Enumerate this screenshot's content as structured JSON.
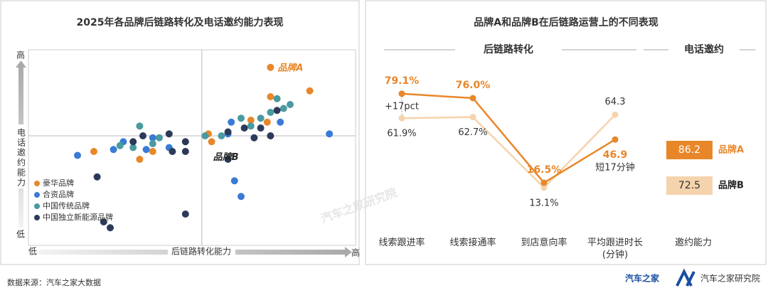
{
  "chart_data": [
    {
      "type": "scatter",
      "title": "2025年各品牌后链路转化及电话邀约能力表现",
      "xlabel": "后链路转化能力",
      "ylabel": "电话邀约能力",
      "xlow": "低",
      "xhigh": "高",
      "ylow": "低",
      "yhigh": "高",
      "xlim": [
        0,
        100
      ],
      "ylim": [
        0,
        100
      ],
      "divider": {
        "x": 53,
        "y": 56
      },
      "annotations": [
        "品牌A",
        "品牌B"
      ],
      "series": [
        {
          "name": "豪华品牌",
          "color": "#e8872a",
          "x": [
            74,
            86,
            74,
            68,
            73,
            56,
            20,
            34,
            38,
            55
          ],
          "values": [
            91,
            79,
            76,
            64,
            63,
            53,
            48,
            44,
            48,
            57
          ]
        },
        {
          "name": "合资品牌",
          "color": "#3a7bd5",
          "x": [
            62,
            77,
            92,
            26,
            15,
            29,
            38,
            43,
            36,
            63,
            65,
            61
          ],
          "values": [
            63,
            63,
            57,
            49,
            46,
            53,
            55,
            50,
            49,
            33,
            25,
            57
          ]
        },
        {
          "name": "中国传统品牌",
          "color": "#4a9aa0",
          "x": [
            76,
            78,
            80,
            74,
            71,
            68,
            59,
            34,
            32,
            28,
            38,
            40,
            54,
            65
          ],
          "values": [
            75,
            70,
            72,
            68,
            65,
            61,
            56,
            61,
            50,
            51,
            52,
            55,
            56,
            65
          ]
        },
        {
          "name": "中国独立新能源品牌",
          "color": "#2c3a5a",
          "x": [
            76,
            71,
            66,
            61,
            74,
            43,
            48,
            44,
            48,
            35,
            32,
            21,
            48,
            23,
            25,
            61,
            69
          ],
          "values": [
            69,
            60,
            60,
            58,
            56,
            57,
            53,
            48,
            48,
            56,
            53,
            35,
            16,
            12,
            9,
            44,
            55
          ]
        }
      ]
    },
    {
      "type": "line",
      "title": "品牌A和品牌B在后链路运营上的不同表现",
      "section": "后链路转化",
      "categories": [
        "线索跟进率",
        "线索接通率",
        "到店意向率",
        "平均跟进时长\n(分钟)"
      ],
      "ylim": [
        0,
        90
      ],
      "series": [
        {
          "name": "品牌A",
          "color": "#e8872a",
          "values": [
            79.1,
            76.0,
            16.5,
            46.9
          ],
          "value_labels": [
            "79.1%",
            "76.0%",
            "16.5%",
            "46.9"
          ]
        },
        {
          "name": "品牌B",
          "color": "#f5d3ad",
          "values": [
            61.9,
            62.7,
            13.1,
            64.3
          ],
          "value_labels": [
            "61.9%",
            "62.7%",
            "13.1%",
            "64.3"
          ]
        }
      ],
      "annotations": [
        "+17pct",
        "短17分钟"
      ],
      "invite": {
        "section": "电话邀约",
        "category": "邀约能力",
        "values": [
          86.2,
          72.5
        ]
      }
    }
  ],
  "footer": {
    "source": "数据来源：汽车之家大数据",
    "logo1": "汽车之家",
    "logo2": "汽车之家研究院",
    "watermark": "汽车之家研究院"
  }
}
